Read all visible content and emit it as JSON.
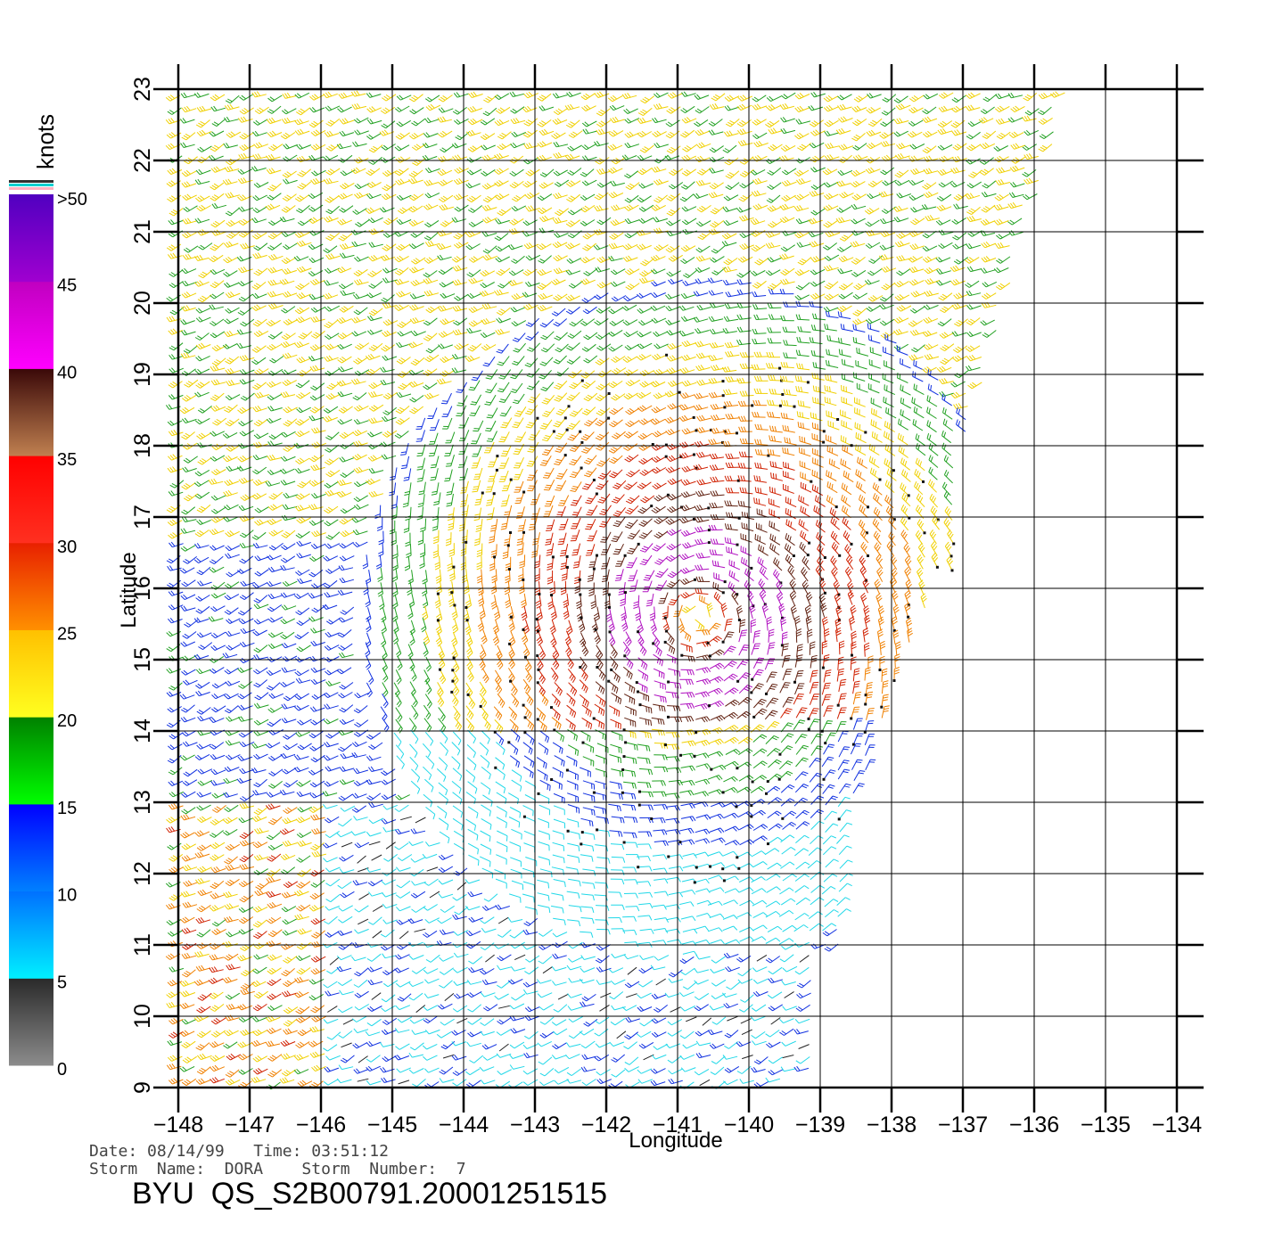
{
  "legend": {
    "title": "knots",
    "ticks": [
      "0",
      "5",
      "10",
      "15",
      "20",
      "25",
      "30",
      "35",
      "40",
      "45",
      ">50"
    ],
    "bands": [
      {
        "from": 0,
        "to": 5,
        "top": "#2a2a2a",
        "bottom": "#8c8c8c"
      },
      {
        "from": 5,
        "to": 10,
        "top": "#0070ff",
        "bottom": "#00f0ff"
      },
      {
        "from": 10,
        "to": 15,
        "top": "#0000ff",
        "bottom": "#0080ff"
      },
      {
        "from": 15,
        "to": 20,
        "top": "#008000",
        "bottom": "#00ff00"
      },
      {
        "from": 20,
        "to": 25,
        "top": "#ffc000",
        "bottom": "#ffff20"
      },
      {
        "from": 25,
        "to": 30,
        "top": "#e82000",
        "bottom": "#ff9000"
      },
      {
        "from": 30,
        "to": 35,
        "top": "#ff0000",
        "bottom": "#ff3020"
      },
      {
        "from": 35,
        "to": 40,
        "top": "#3a0808",
        "bottom": "#c08050"
      },
      {
        "from": 40,
        "to": 45,
        "top": "#c000c0",
        "bottom": "#ff00ff"
      },
      {
        "from": 45,
        "to": 50,
        "top": "#5000c0",
        "bottom": "#a000d0"
      }
    ]
  },
  "map": {
    "lon_ticks": [
      "-148",
      "-147",
      "-146",
      "-145",
      "-144",
      "-143",
      "-142",
      "-141",
      "-140",
      "-139",
      "-138",
      "-137",
      "-136",
      "-135",
      "-134"
    ],
    "lat_ticks": [
      "9",
      "10",
      "11",
      "12",
      "13",
      "14",
      "15",
      "16",
      "17",
      "18",
      "19",
      "20",
      "21",
      "22",
      "23"
    ],
    "lon_range": [
      -148,
      -133.4
    ],
    "lat_range": [
      9,
      23
    ],
    "xlabel": "Longitude",
    "ylabel": "Latitude",
    "storm_center": {
      "lon": -140.7,
      "lat": 15.6
    },
    "wind_field": "wind barbs colored by speed (knots); cyclone centered near -140.7, 15.6"
  },
  "footer": {
    "line1": "Date: 08/14/99   Time: 03:51:12",
    "line2": "Storm  Name:  DORA    Storm  Number:  7",
    "file_id": "BYU  QS_S2B00791.20001251515"
  }
}
